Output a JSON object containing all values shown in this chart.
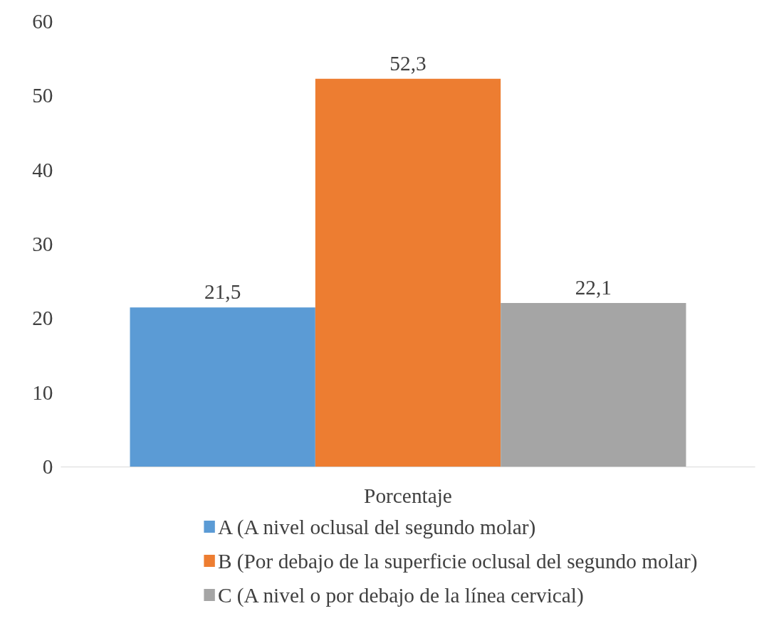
{
  "chart_data": {
    "type": "bar",
    "categories": [
      "Porcentaje"
    ],
    "series": [
      {
        "name": "A (A nivel oclusal del segundo molar)",
        "color": "#5b9bd5",
        "values": [
          21.5
        ],
        "value_labels": [
          "21,5"
        ]
      },
      {
        "name": "B (Por debajo de la superficie oclusal del segundo molar)",
        "color": "#ed7d31",
        "values": [
          52.3
        ],
        "value_labels": [
          "52,3"
        ]
      },
      {
        "name": "C (A nivel o por debajo de la línea cervical)",
        "color": "#a5a5a5",
        "values": [
          22.1
        ],
        "value_labels": [
          "22,1"
        ]
      }
    ],
    "ylim": [
      0,
      60
    ],
    "yticks": [
      0,
      10,
      20,
      30,
      40,
      50,
      60
    ],
    "grid": false,
    "legend": "bottom"
  }
}
